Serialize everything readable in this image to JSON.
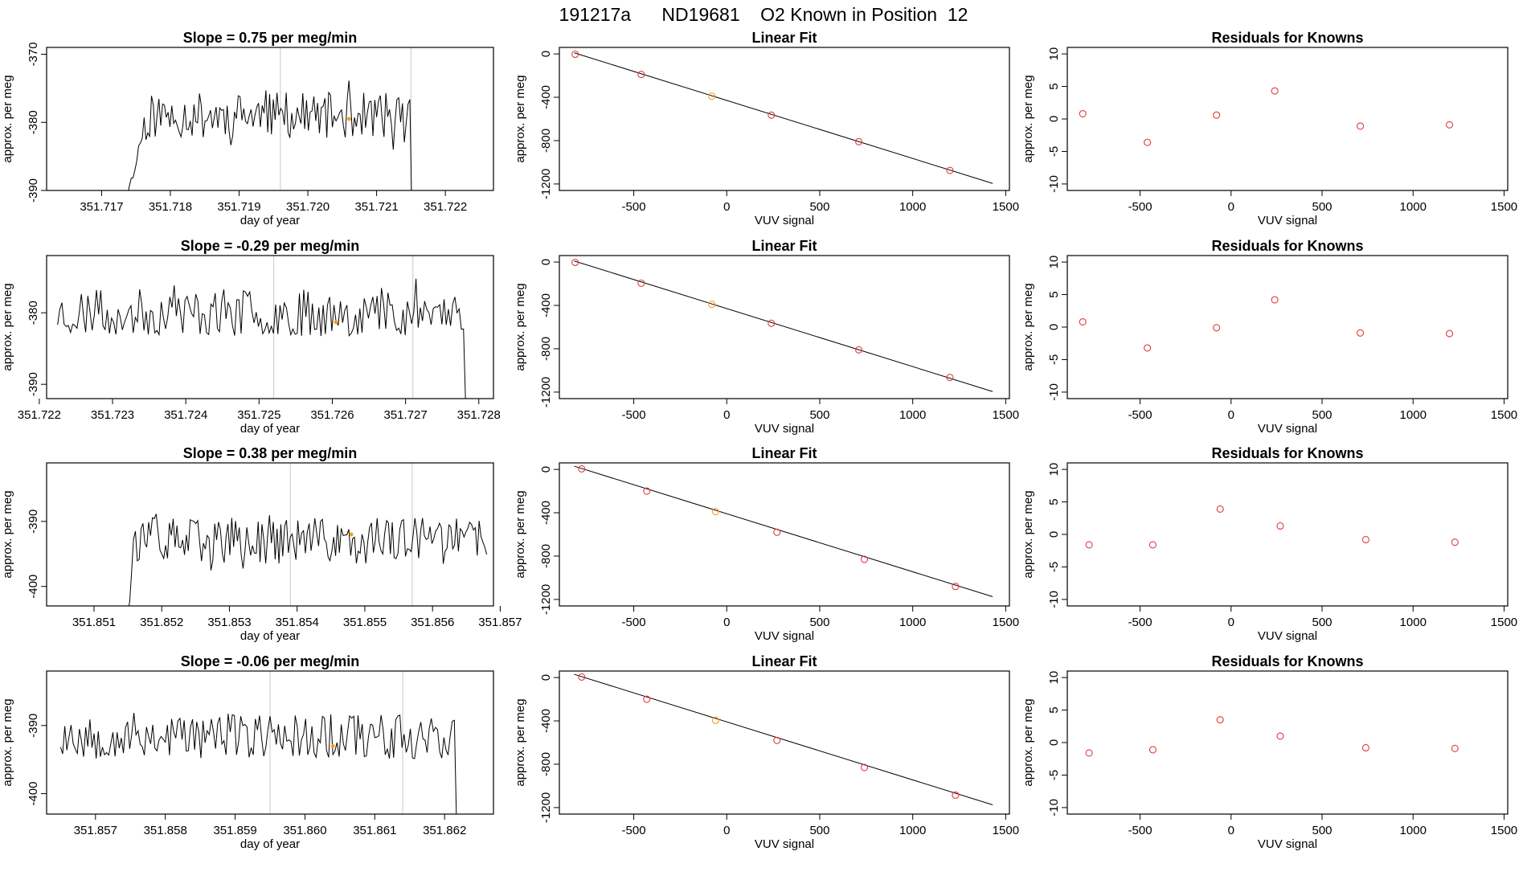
{
  "page_title": "191217a      ND19681    O2 Known in Position  12",
  "colors": {
    "line": "#000000",
    "point": "#e03b3b",
    "highlight": "#f5a020",
    "vline": "#d0d0d0"
  },
  "chart_data": [
    {
      "type": "line",
      "title": "Slope =  0.75  per meg/min",
      "xlabel": "day of year",
      "ylabel": "approx. per meg",
      "xlim": [
        351.7162,
        351.7227
      ],
      "ylim": [
        -390,
        -369
      ],
      "xticks": [
        351.717,
        351.718,
        351.719,
        351.72,
        351.721,
        351.722
      ],
      "xtick_labels": [
        "351.717",
        "351.718",
        "351.719",
        "351.720",
        "351.721",
        "351.722"
      ],
      "yticks": [
        -390,
        -380,
        -370
      ],
      "ytick_labels": [
        "-390",
        "-380",
        "-370"
      ],
      "vlines": [
        351.7196,
        351.7215
      ],
      "highlight_point": {
        "x": 351.7206,
        "y": -379.5
      },
      "series": {
        "start": 351.71735,
        "end": 351.72245,
        "seed": 11,
        "mean": -379,
        "amp": 3.4,
        "ramp": 0.0004,
        "ramp_from": -392,
        "tail_drop_at": 351.7215,
        "tail_drop_to": -392
      }
    },
    {
      "type": "scatter",
      "title": "Linear Fit",
      "xlabel": "VUV signal",
      "ylabel": "approx. per meg",
      "xlim": [
        -900,
        1520
      ],
      "ylim": [
        -1260,
        60
      ],
      "xticks": [
        -500,
        0,
        500,
        1000,
        1500
      ],
      "xtick_labels": [
        "-500",
        "0",
        "500",
        "1000",
        "1500"
      ],
      "yticks": [
        -1200,
        -800,
        -400,
        0
      ],
      "ytick_labels": [
        "-1200",
        "-800",
        "-400",
        "0"
      ],
      "fit_line": [
        [
          -820,
          10
        ],
        [
          1430,
          -1195
        ]
      ],
      "points": [
        [
          -815,
          -3
        ],
        [
          -460,
          -190
        ],
        [
          -80,
          -390
        ],
        [
          240,
          -565
        ],
        [
          710,
          -810
        ],
        [
          1200,
          -1075
        ]
      ],
      "highlight_index": 2
    },
    {
      "type": "scatter",
      "title": "Residuals for Knowns",
      "xlabel": "VUV signal",
      "ylabel": "approx. per meg",
      "xlim": [
        -900,
        1520
      ],
      "ylim": [
        -11,
        11
      ],
      "xticks": [
        -500,
        0,
        500,
        1000,
        1500
      ],
      "xtick_labels": [
        "-500",
        "0",
        "500",
        "1000",
        "1500"
      ],
      "yticks": [
        -10,
        -5,
        0,
        5,
        10
      ],
      "ytick_labels": [
        "-10",
        "-5",
        "0",
        "5",
        "10"
      ],
      "points": [
        [
          -815,
          0.8
        ],
        [
          -460,
          -3.6
        ],
        [
          -80,
          0.6
        ],
        [
          240,
          4.3
        ],
        [
          710,
          -1.1
        ],
        [
          1200,
          -0.9
        ]
      ]
    },
    {
      "type": "line",
      "title": "Slope =  -0.29  per meg/min",
      "xlabel": "day of year",
      "ylabel": "approx. per meg",
      "xlim": [
        351.7221,
        351.7282
      ],
      "ylim": [
        -392,
        -372
      ],
      "xticks": [
        351.722,
        351.723,
        351.724,
        351.725,
        351.726,
        351.727,
        351.728
      ],
      "xtick_labels": [
        "351.722",
        "351.723",
        "351.724",
        "351.725",
        "351.726",
        "351.727",
        "351.728"
      ],
      "yticks": [
        -390,
        -380
      ],
      "ytick_labels": [
        "-390",
        "-380"
      ],
      "vlines": [
        351.7252,
        351.7271
      ],
      "highlight_point": {
        "x": 351.72605,
        "y": -381.3
      },
      "series": {
        "start": 351.72225,
        "end": 351.72785,
        "seed": 23,
        "mean": -380,
        "amp": 3.3,
        "ramp": 0,
        "tail_drop_at": 351.7278,
        "tail_drop_to": -393
      }
    },
    {
      "type": "scatter",
      "title": "Linear Fit",
      "xlabel": "VUV signal",
      "ylabel": "approx. per meg",
      "xlim": [
        -900,
        1520
      ],
      "ylim": [
        -1260,
        60
      ],
      "xticks": [
        -500,
        0,
        500,
        1000,
        1500
      ],
      "xtick_labels": [
        "-500",
        "0",
        "500",
        "1000",
        "1500"
      ],
      "yticks": [
        -1200,
        -800,
        -400,
        0
      ],
      "ytick_labels": [
        "-1200",
        "-800",
        "-400",
        "0"
      ],
      "fit_line": [
        [
          -820,
          10
        ],
        [
          1430,
          -1195
        ]
      ],
      "points": [
        [
          -815,
          -3
        ],
        [
          -460,
          -195
        ],
        [
          -80,
          -390
        ],
        [
          240,
          -565
        ],
        [
          710,
          -810
        ],
        [
          1200,
          -1065
        ]
      ],
      "highlight_index": 2
    },
    {
      "type": "scatter",
      "title": "Residuals for Knowns",
      "xlabel": "VUV signal",
      "ylabel": "approx. per meg",
      "xlim": [
        -900,
        1520
      ],
      "ylim": [
        -11,
        11
      ],
      "xticks": [
        -500,
        0,
        500,
        1000,
        1500
      ],
      "xtick_labels": [
        "-500",
        "0",
        "500",
        "1000",
        "1500"
      ],
      "yticks": [
        -10,
        -5,
        0,
        5,
        10
      ],
      "ytick_labels": [
        "-10",
        "-5",
        "0",
        "5",
        "10"
      ],
      "points": [
        [
          -815,
          0.8
        ],
        [
          -460,
          -3.2
        ],
        [
          -80,
          -0.1
        ],
        [
          240,
          4.2
        ],
        [
          710,
          -0.9
        ],
        [
          1200,
          -1.0
        ]
      ]
    },
    {
      "type": "line",
      "title": "Slope =  0.38  per meg/min",
      "xlabel": "day of year",
      "ylabel": "approx. per meg",
      "xlim": [
        351.8503,
        351.8569
      ],
      "ylim": [
        -403,
        -381
      ],
      "xticks": [
        351.851,
        351.852,
        351.853,
        351.854,
        351.855,
        351.856,
        351.857
      ],
      "xtick_labels": [
        "351.851",
        "351.852",
        "351.853",
        "351.854",
        "351.855",
        "351.856",
        "351.857"
      ],
      "yticks": [
        -400,
        -390
      ],
      "ytick_labels": [
        "-400",
        "-390"
      ],
      "vlines": [
        351.8539,
        351.8557
      ],
      "highlight_point": {
        "x": 351.8548,
        "y": -392
      },
      "series": {
        "start": 351.8515,
        "end": 351.8568,
        "seed": 37,
        "mean": -393,
        "amp": 3.6,
        "ramp": 0,
        "head_from": -404
      }
    },
    {
      "type": "scatter",
      "title": "Linear Fit",
      "xlabel": "VUV signal",
      "ylabel": "approx. per meg",
      "xlim": [
        -900,
        1520
      ],
      "ylim": [
        -1260,
        60
      ],
      "xticks": [
        -500,
        0,
        500,
        1000,
        1500
      ],
      "xtick_labels": [
        "-500",
        "0",
        "500",
        "1000",
        "1500"
      ],
      "yticks": [
        -1200,
        -800,
        -400,
        0
      ],
      "ytick_labels": [
        "-1200",
        "-800",
        "-400",
        "0"
      ],
      "fit_line": [
        [
          -820,
          30
        ],
        [
          1430,
          -1175
        ]
      ],
      "points": [
        [
          -780,
          5
        ],
        [
          -430,
          -200
        ],
        [
          -60,
          -390
        ],
        [
          270,
          -580
        ],
        [
          740,
          -830
        ],
        [
          1230,
          -1080
        ]
      ],
      "highlight_index": 2
    },
    {
      "type": "scatter",
      "title": "Residuals for Knowns",
      "xlabel": "VUV signal",
      "ylabel": "approx. per meg",
      "xlim": [
        -900,
        1520
      ],
      "ylim": [
        -11,
        11
      ],
      "xticks": [
        -500,
        0,
        500,
        1000,
        1500
      ],
      "xtick_labels": [
        "-500",
        "0",
        "500",
        "1000",
        "1500"
      ],
      "yticks": [
        -10,
        -5,
        0,
        5,
        10
      ],
      "ytick_labels": [
        "-10",
        "-5",
        "0",
        "5",
        "10"
      ],
      "points": [
        [
          -780,
          -1.6
        ],
        [
          -430,
          -1.6
        ],
        [
          -60,
          3.9
        ],
        [
          270,
          1.3
        ],
        [
          740,
          -0.8
        ],
        [
          1230,
          -1.2
        ]
      ]
    },
    {
      "type": "line",
      "title": "Slope =  -0.06  per meg/min",
      "xlabel": "day of year",
      "ylabel": "approx. per meg",
      "xlim": [
        351.8563,
        351.8627
      ],
      "ylim": [
        -403,
        -382
      ],
      "xticks": [
        351.857,
        351.858,
        351.859,
        351.86,
        351.861,
        351.862
      ],
      "xtick_labels": [
        "351.857",
        "351.858",
        "351.859",
        "351.860",
        "351.861",
        "351.862"
      ],
      "yticks": [
        -400,
        -390
      ],
      "ytick_labels": [
        "-400",
        "-390"
      ],
      "vlines": [
        351.8595,
        351.8614
      ],
      "highlight_point": {
        "x": 351.8604,
        "y": -393
      },
      "series": {
        "start": 351.8565,
        "end": 351.8622,
        "seed": 53,
        "mean": -391.5,
        "amp": 3.4,
        "ramp": 0,
        "tail_drop_at": 351.86215,
        "tail_drop_to": -404
      }
    },
    {
      "type": "scatter",
      "title": "Linear Fit",
      "xlabel": "VUV signal",
      "ylabel": "approx. per meg",
      "xlim": [
        -900,
        1520
      ],
      "ylim": [
        -1260,
        60
      ],
      "xticks": [
        -500,
        0,
        500,
        1000,
        1500
      ],
      "xtick_labels": [
        "-500",
        "0",
        "500",
        "1000",
        "1500"
      ],
      "yticks": [
        -1200,
        -800,
        -400,
        0
      ],
      "ytick_labels": [
        "-1200",
        "-800",
        "-400",
        "0"
      ],
      "fit_line": [
        [
          -820,
          30
        ],
        [
          1430,
          -1175
        ]
      ],
      "points": [
        [
          -780,
          5
        ],
        [
          -430,
          -200
        ],
        [
          -60,
          -395
        ],
        [
          270,
          -580
        ],
        [
          740,
          -830
        ],
        [
          1230,
          -1085
        ]
      ],
      "highlight_index": 2
    },
    {
      "type": "scatter",
      "title": "Residuals for Knowns",
      "xlabel": "VUV signal",
      "ylabel": "approx. per meg",
      "xlim": [
        -900,
        1520
      ],
      "ylim": [
        -11,
        11
      ],
      "xticks": [
        -500,
        0,
        500,
        1000,
        1500
      ],
      "xtick_labels": [
        "-500",
        "0",
        "500",
        "1000",
        "1500"
      ],
      "yticks": [
        -10,
        -5,
        0,
        5,
        10
      ],
      "ytick_labels": [
        "-10",
        "-5",
        "0",
        "5",
        "10"
      ],
      "points": [
        [
          -780,
          -1.6
        ],
        [
          -430,
          -1.1
        ],
        [
          -60,
          3.5
        ],
        [
          270,
          1.0
        ],
        [
          740,
          -0.8
        ],
        [
          1230,
          -0.9
        ]
      ]
    }
  ]
}
